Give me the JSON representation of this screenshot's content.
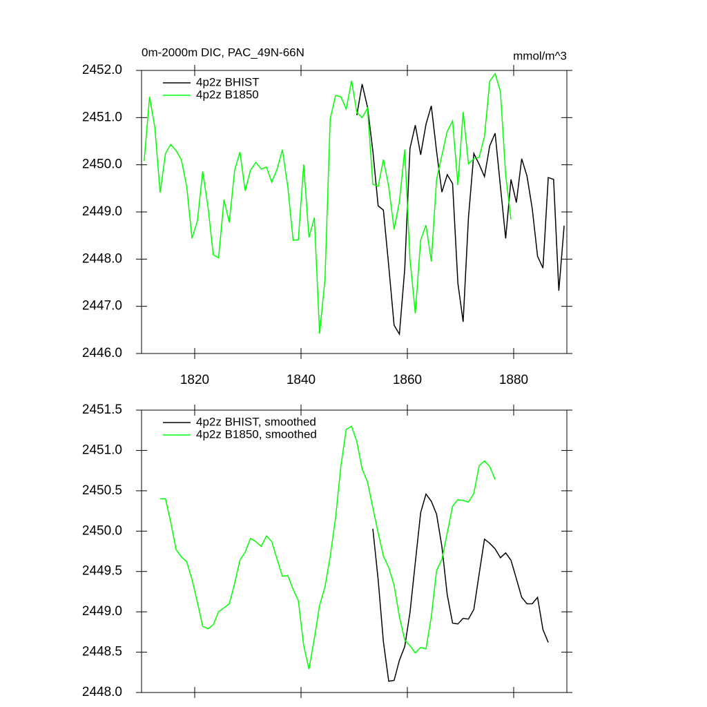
{
  "chart_data": [
    {
      "type": "line",
      "title": "0m-2000m DIC, PAC_49N-66N",
      "units": "mmol/m^3",
      "xlim": [
        1810,
        1890
      ],
      "xticks": [
        1820,
        1840,
        1860,
        1880
      ],
      "ylim": [
        2446,
        2452
      ],
      "yticks": [
        {
          "value": 2446,
          "label": "2446.0"
        },
        {
          "value": 2447,
          "label": "2447.0"
        },
        {
          "value": 2448,
          "label": "2448.0"
        },
        {
          "value": 2449,
          "label": "2449.0"
        },
        {
          "value": 2450,
          "label": "2450.0"
        },
        {
          "value": 2451,
          "label": "2451.0"
        },
        {
          "value": 2452,
          "label": "2452.0"
        }
      ],
      "series": [
        {
          "name": "4p2z BHIST",
          "color": "#000000",
          "x": [
            1850.5,
            1851.5,
            1852.5,
            1853.5,
            1854.5,
            1855.5,
            1856.5,
            1857.5,
            1858.5,
            1859.5,
            1860.5,
            1861.5,
            1862.5,
            1863.5,
            1864.5,
            1865.5,
            1866.5,
            1867.5,
            1868.5,
            1869.5,
            1870.5,
            1871.5,
            1872.5,
            1873.5,
            1874.5,
            1875.5,
            1876.5,
            1877.5,
            1878.5,
            1879.5,
            1880.5,
            1881.5,
            1882.5,
            1883.5,
            1884.5,
            1885.5,
            1886.5,
            1887.5,
            1888.5,
            1889.5
          ],
          "values": [
            2451.05,
            2451.71,
            2451.22,
            2450.3,
            2449.13,
            2449.04,
            2447.86,
            2446.6,
            2446.41,
            2447.79,
            2450.35,
            2450.84,
            2450.21,
            2450.86,
            2451.25,
            2450.29,
            2449.42,
            2449.79,
            2449.6,
            2447.49,
            2446.67,
            2448.88,
            2450.24,
            2450.01,
            2449.75,
            2450.4,
            2450.67,
            2449.54,
            2448.44,
            2449.69,
            2449.2,
            2450.13,
            2449.76,
            2449.07,
            2448.06,
            2447.81,
            2449.73,
            2449.69,
            2447.33,
            2448.71
          ]
        },
        {
          "name": "4p2z B1850",
          "color": "#00ff00",
          "x": [
            1810.5,
            1811.5,
            1812.5,
            1813.5,
            1814.5,
            1815.5,
            1816.5,
            1817.5,
            1818.5,
            1819.5,
            1820.5,
            1821.5,
            1822.5,
            1823.5,
            1824.5,
            1825.5,
            1826.5,
            1827.5,
            1828.5,
            1829.5,
            1830.5,
            1831.5,
            1832.5,
            1833.5,
            1834.5,
            1835.5,
            1836.5,
            1837.5,
            1838.5,
            1839.5,
            1840.5,
            1841.5,
            1842.5,
            1843.5,
            1844.5,
            1845.5,
            1846.5,
            1847.5,
            1848.5,
            1849.5,
            1850.5,
            1851.5,
            1852.5,
            1853.5,
            1854.5,
            1855.5,
            1856.5,
            1857.5,
            1858.5,
            1859.5,
            1860.5,
            1861.5,
            1862.5,
            1863.5,
            1864.5,
            1865.5,
            1866.5,
            1867.5,
            1868.5,
            1869.5,
            1870.5,
            1871.5,
            1872.5,
            1873.5,
            1874.5,
            1875.5,
            1876.5,
            1877.5,
            1878.5,
            1879.5
          ],
          "values": [
            2450.08,
            2451.44,
            2450.79,
            2449.41,
            2450.24,
            2450.43,
            2450.3,
            2450.1,
            2449.54,
            2448.44,
            2448.81,
            2449.86,
            2449.1,
            2448.09,
            2448.03,
            2449.26,
            2448.78,
            2449.88,
            2450.27,
            2449.45,
            2449.89,
            2450.05,
            2449.91,
            2449.95,
            2449.63,
            2449.91,
            2450.32,
            2449.54,
            2448.4,
            2448.41,
            2450.01,
            2448.46,
            2448.88,
            2446.42,
            2447.57,
            2450.98,
            2451.47,
            2451.44,
            2451.18,
            2451.78,
            2451.11,
            2451.0,
            2451.2,
            2449.59,
            2449.54,
            2450.11,
            2449.54,
            2448.63,
            2449.22,
            2450.32,
            2448.0,
            2446.85,
            2448.41,
            2448.72,
            2447.95,
            2449.69,
            2450.2,
            2450.71,
            2450.93,
            2449.57,
            2451.12,
            2450.02,
            2450.13,
            2450.16,
            2450.6,
            2451.77,
            2451.93,
            2451.55,
            2449.78,
            2448.84
          ]
        }
      ]
    },
    {
      "type": "line",
      "xlim": [
        1810,
        1890
      ],
      "xticks": [
        1820,
        1840,
        1860,
        1880
      ],
      "ylim": [
        2448,
        2451.5
      ],
      "yticks": [
        {
          "value": 2448,
          "label": "2448.0"
        },
        {
          "value": 2448.5,
          "label": "2448.5"
        },
        {
          "value": 2449,
          "label": "2449.0"
        },
        {
          "value": 2449.5,
          "label": "2449.5"
        },
        {
          "value": 2450,
          "label": "2450.0"
        },
        {
          "value": 2450.5,
          "label": "2450.5"
        },
        {
          "value": 2451,
          "label": "2451.0"
        },
        {
          "value": 2451.5,
          "label": "2451.5"
        }
      ],
      "series": [
        {
          "name": "4p2z BHIST, smoothed",
          "color": "#000000",
          "x": [
            1853.5,
            1854.5,
            1855.5,
            1856.5,
            1857.5,
            1858.5,
            1859.5,
            1860.5,
            1861.5,
            1862.5,
            1863.5,
            1864.5,
            1865.5,
            1866.5,
            1867.5,
            1868.5,
            1869.5,
            1870.5,
            1871.5,
            1872.5,
            1873.5,
            1874.5,
            1875.5,
            1876.5,
            1877.5,
            1878.5,
            1879.5,
            1880.5,
            1881.5,
            1882.5,
            1883.5,
            1884.5,
            1885.5,
            1886.5
          ],
          "values": [
            2450.03,
            2449.4,
            2448.63,
            2448.14,
            2448.15,
            2448.4,
            2448.57,
            2448.99,
            2449.61,
            2450.23,
            2450.46,
            2450.37,
            2450.21,
            2449.81,
            2449.21,
            2448.86,
            2448.85,
            2448.92,
            2448.91,
            2449.03,
            2449.47,
            2449.9,
            2449.85,
            2449.78,
            2449.67,
            2449.73,
            2449.64,
            2449.41,
            2449.18,
            2449.1,
            2449.1,
            2449.18,
            2448.78,
            2448.62
          ]
        },
        {
          "name": "4p2z B1850, smoothed",
          "color": "#00ff00",
          "x": [
            1813.5,
            1814.5,
            1815.5,
            1816.5,
            1817.5,
            1818.5,
            1819.5,
            1820.5,
            1821.5,
            1822.5,
            1823.5,
            1824.5,
            1825.5,
            1826.5,
            1827.5,
            1828.5,
            1829.5,
            1830.5,
            1831.5,
            1832.5,
            1833.5,
            1834.5,
            1835.5,
            1836.5,
            1837.5,
            1838.5,
            1839.5,
            1840.5,
            1841.5,
            1842.5,
            1843.5,
            1844.5,
            1845.5,
            1846.5,
            1847.5,
            1848.5,
            1849.5,
            1850.5,
            1851.5,
            1852.5,
            1853.5,
            1854.5,
            1855.5,
            1856.5,
            1857.5,
            1858.5,
            1859.5,
            1860.5,
            1861.5,
            1862.5,
            1863.5,
            1864.5,
            1865.5,
            1866.5,
            1867.5,
            1868.5,
            1869.5,
            1870.5,
            1871.5,
            1872.5,
            1873.5,
            1874.5,
            1875.5,
            1876.5
          ],
          "values": [
            2450.4,
            2450.4,
            2450.11,
            2449.77,
            2449.68,
            2449.62,
            2449.4,
            2449.12,
            2448.82,
            2448.79,
            2448.84,
            2449.0,
            2449.05,
            2449.1,
            2449.35,
            2449.64,
            2449.74,
            2449.91,
            2449.87,
            2449.81,
            2449.94,
            2449.87,
            2449.65,
            2449.44,
            2449.45,
            2449.28,
            2449.14,
            2448.58,
            2448.29,
            2448.67,
            2449.08,
            2449.31,
            2449.69,
            2450.17,
            2450.81,
            2451.26,
            2451.3,
            2451.11,
            2450.77,
            2450.61,
            2450.29,
            2449.98,
            2449.69,
            2449.55,
            2449.33,
            2448.94,
            2448.65,
            2448.58,
            2448.49,
            2448.56,
            2448.54,
            2448.94,
            2449.51,
            2449.65,
            2449.98,
            2450.31,
            2450.39,
            2450.38,
            2450.36,
            2450.47,
            2450.81,
            2450.87,
            2450.8,
            2450.64
          ]
        }
      ]
    }
  ]
}
